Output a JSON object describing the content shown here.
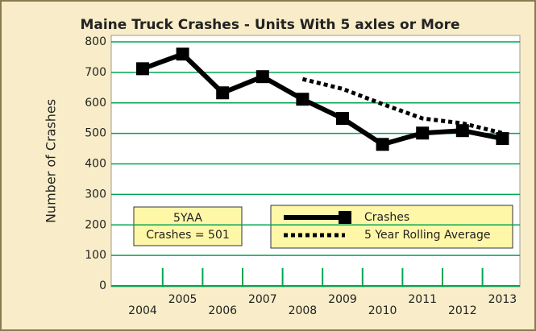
{
  "chart_data": {
    "type": "line",
    "title": "Maine Truck Crashes - Units With 5 axles or More",
    "y_label": "Number of Crashes",
    "categories": [
      "2004",
      "2005",
      "2006",
      "2007",
      "2008",
      "2009",
      "2010",
      "2011",
      "2012",
      "2013"
    ],
    "series": [
      {
        "name": "Crashes",
        "color": "#000000",
        "style": "solid-square-markers",
        "values": [
          712,
          760,
          633,
          686,
          612,
          549,
          464,
          501,
          509,
          483
        ]
      },
      {
        "name": "5 Year Rolling Average",
        "color": "#000000",
        "style": "dotted",
        "values": [
          null,
          null,
          null,
          null,
          678,
          646,
          596,
          549,
          533,
          501
        ]
      }
    ],
    "annotation": [
      "5YAA",
      "Crashes = 501"
    ],
    "ylim": [
      0,
      800
    ],
    "yticks": [
      0,
      100,
      200,
      300,
      400,
      500,
      600,
      700,
      800
    ],
    "grid": true,
    "grid_color": "#00a651"
  }
}
